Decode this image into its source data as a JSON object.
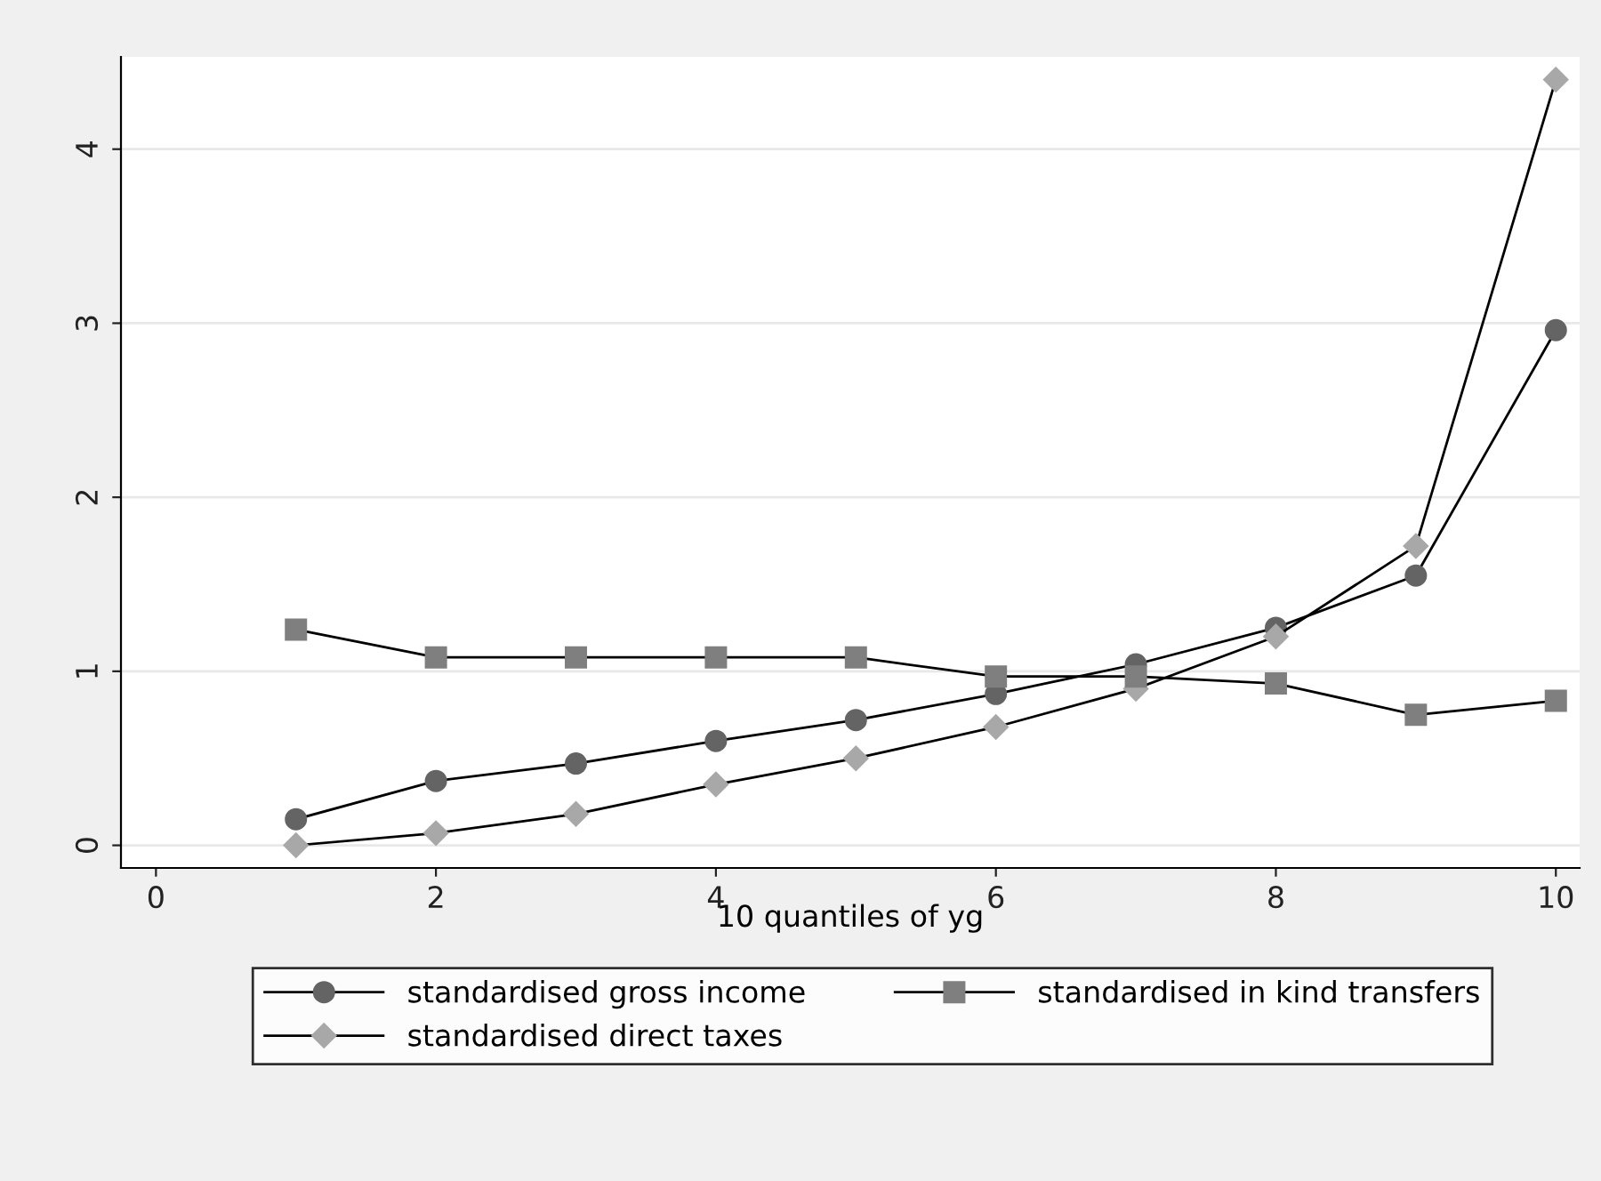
{
  "chart_data": {
    "type": "line",
    "xlabel": "10 quantiles of yg",
    "x": [
      1,
      2,
      3,
      4,
      5,
      6,
      7,
      8,
      9,
      10
    ],
    "series": [
      {
        "name": "standardised gross income",
        "color": "#646464",
        "marker": "circle",
        "values": [
          0.15,
          0.37,
          0.47,
          0.6,
          0.72,
          0.87,
          1.04,
          1.25,
          1.55,
          2.96
        ]
      },
      {
        "name": "standardised direct taxes",
        "color": "#a8a8a8",
        "marker": "diamond",
        "values": [
          0.0,
          0.07,
          0.18,
          0.35,
          0.5,
          0.68,
          0.9,
          1.2,
          1.72,
          4.4
        ]
      },
      {
        "name": "standardised in kind transfers",
        "color": "#7f7f7f",
        "marker": "square",
        "values": [
          1.24,
          1.08,
          1.08,
          1.08,
          1.08,
          0.97,
          0.97,
          0.93,
          0.75,
          0.83
        ]
      }
    ],
    "xlim": [
      -0.25,
      10.17
    ],
    "ylim": [
      -0.13,
      4.53
    ],
    "xticks": [
      0,
      2,
      4,
      6,
      8,
      10
    ],
    "yticks": [
      0,
      1,
      2,
      3,
      4
    ],
    "grid": "y",
    "legend": "bottom"
  }
}
